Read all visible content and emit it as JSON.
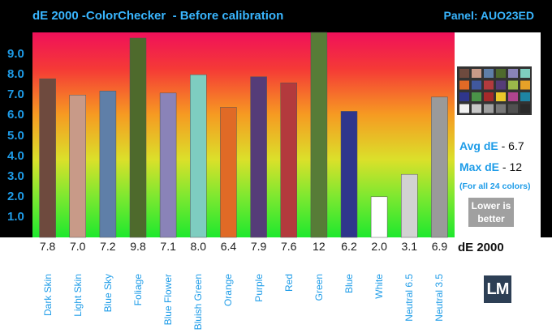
{
  "header": {
    "title": "dE 2000 -ColorChecker  - Before calibration",
    "panel": "Panel: AUO23ED"
  },
  "chart_data": {
    "type": "bar",
    "title": "dE 2000 -ColorChecker  - Before calibration",
    "ylabel": "dE 2000",
    "ylim": [
      0,
      10
    ],
    "yticks": [
      "1.0",
      "2.0",
      "3.0",
      "4.0",
      "5.0",
      "6.0",
      "7.0",
      "8.0",
      "9.0"
    ],
    "categories": [
      "Dark Skin",
      "Light Skin",
      "Blue Sky",
      "Foliage",
      "Blue Flower",
      "Bluish Green",
      "Orange",
      "Purple",
      "Red",
      "Green",
      "Blue",
      "White",
      "Neutral 6.5",
      "Neutral 3.5"
    ],
    "values": [
      7.8,
      7.0,
      7.2,
      9.8,
      7.1,
      8.0,
      6.4,
      7.9,
      7.6,
      12,
      6.2,
      2.0,
      3.1,
      6.9
    ],
    "value_labels": [
      "7.8",
      "7.0",
      "7.2",
      "9.8",
      "7.1",
      "8.0",
      "6.4",
      "7.9",
      "7.6",
      "12",
      "6.2",
      "2.0",
      "3.1",
      "6.9"
    ],
    "bar_colors": [
      "#6e4a3e",
      "#c89a88",
      "#5f7fa8",
      "#4e6a2c",
      "#8a83b8",
      "#7ecdc0",
      "#e06a26",
      "#553c78",
      "#b33a3d",
      "#577c37",
      "#2f368c",
      "#ffffff",
      "#d2d2d2",
      "#9a9a9a"
    ],
    "grid": false
  },
  "summary": {
    "avg_label": "Avg dE",
    "avg_value": "- 6.7",
    "max_label": "Max dE",
    "max_value": "- 12",
    "note": "(For all 24 colors)",
    "lower_line1": "Lower is",
    "lower_line2": "better"
  },
  "checker_colors": [
    "#6e4a3e",
    "#c89a88",
    "#5f7fa8",
    "#4e6a2c",
    "#8a83b8",
    "#7ecdc0",
    "#e06a26",
    "#40589e",
    "#b33a3d",
    "#553c78",
    "#9ab84a",
    "#e6a228",
    "#2f368c",
    "#4a9448",
    "#a52a2a",
    "#eac82a",
    "#b0448e",
    "#1e84a4",
    "#f2f2f2",
    "#c8c8c8",
    "#a0a0a0",
    "#787878",
    "#505050",
    "#2a2a2a"
  ],
  "logo": "LM"
}
